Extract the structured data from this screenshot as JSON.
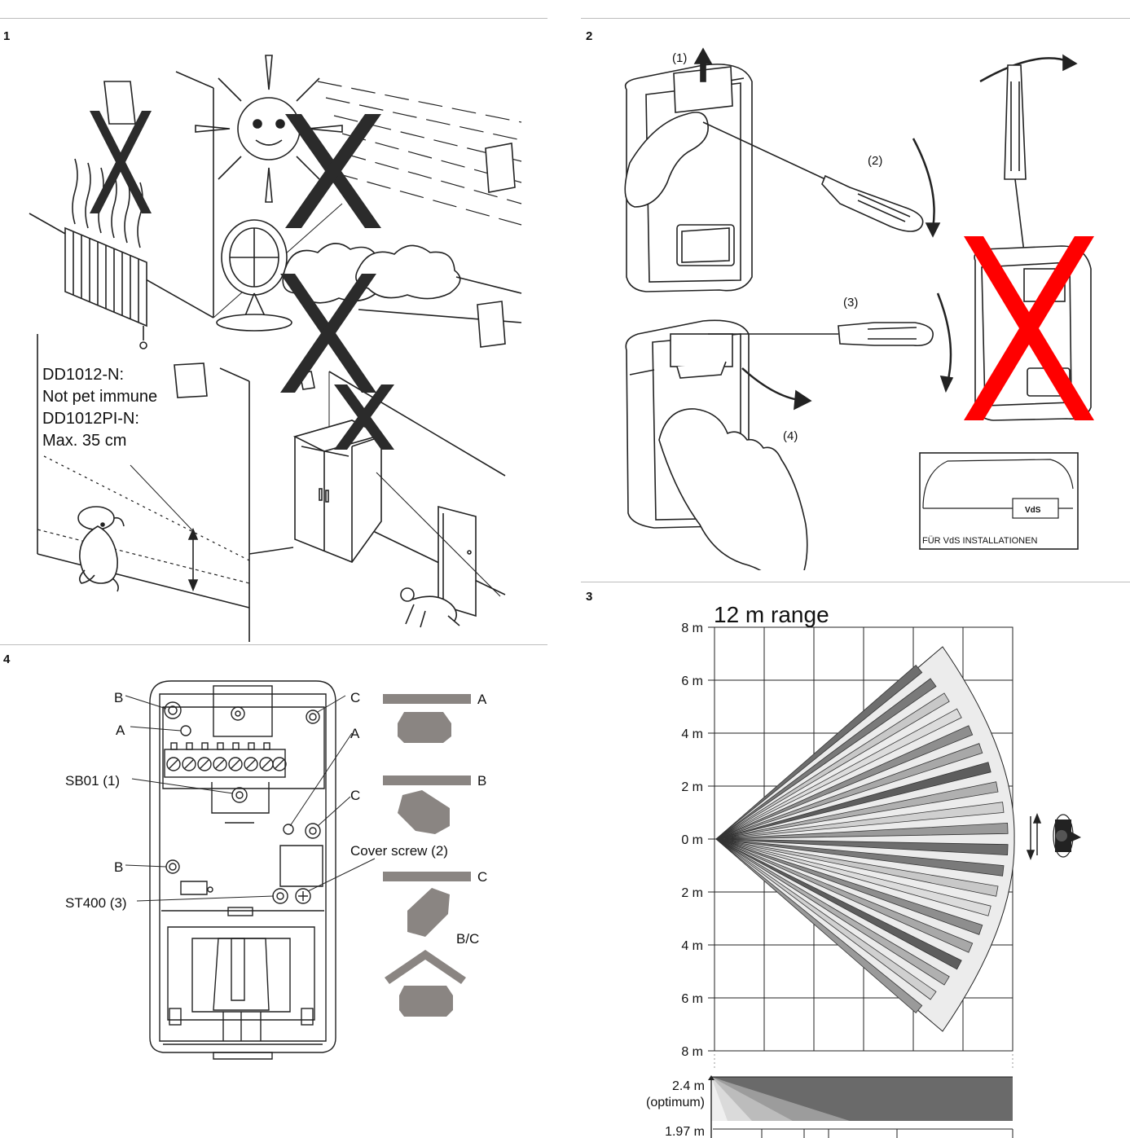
{
  "panels": {
    "p1": {
      "number": "1",
      "pet_text": [
        "DD1012-N:",
        "Not pet immune",
        "DD1012PI-N:",
        "Max. 35 cm"
      ]
    },
    "p2": {
      "number": "2",
      "steps": [
        "(1)",
        "(2)",
        "(3)",
        "(4)"
      ],
      "vds_label": "VdS",
      "vds_caption": "FÜR VdS INSTALLATIONEN"
    },
    "p3": {
      "number": "3",
      "title": "12 m range",
      "y_ticks": [
        "8 m",
        "6 m",
        "4 m",
        "2 m",
        "0 m",
        "2 m",
        "4 m",
        "6 m",
        "8 m"
      ],
      "height_label": "2.4 m",
      "height_note": "(optimum)",
      "bottom_label": "1.97 m"
    },
    "p4": {
      "number": "4",
      "labels": {
        "b_top": "B",
        "a_top": "A",
        "sb01": "SB01 (1)",
        "b_mid": "B",
        "st400": "ST400 (3)",
        "c_top": "C",
        "a_mid": "A",
        "c_mid": "C",
        "cover": "Cover screw (2)"
      },
      "options": [
        "A",
        "B",
        "C",
        "B/C"
      ]
    }
  },
  "colors": {
    "rule": "#bdbdbd",
    "stroke": "#222222",
    "cross_red": "#ff0000",
    "gray_fill": "#8a8582"
  }
}
